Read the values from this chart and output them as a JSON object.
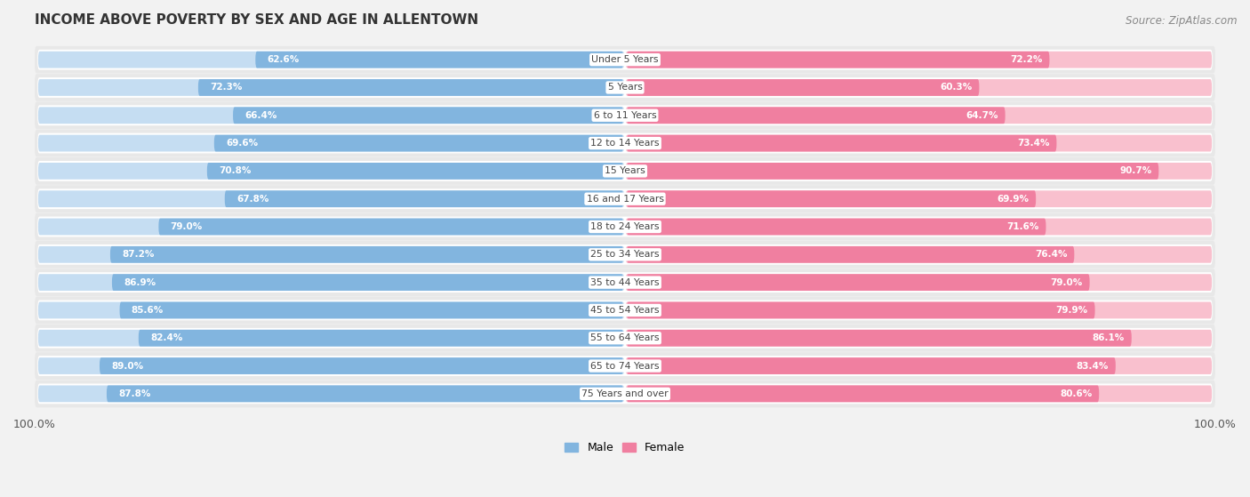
{
  "title": "INCOME ABOVE POVERTY BY SEX AND AGE IN ALLENTOWN",
  "source": "Source: ZipAtlas.com",
  "categories": [
    "Under 5 Years",
    "5 Years",
    "6 to 11 Years",
    "12 to 14 Years",
    "15 Years",
    "16 and 17 Years",
    "18 to 24 Years",
    "25 to 34 Years",
    "35 to 44 Years",
    "45 to 54 Years",
    "55 to 64 Years",
    "65 to 74 Years",
    "75 Years and over"
  ],
  "male_values": [
    62.6,
    72.3,
    66.4,
    69.6,
    70.8,
    67.8,
    79.0,
    87.2,
    86.9,
    85.6,
    82.4,
    89.0,
    87.8
  ],
  "female_values": [
    72.2,
    60.3,
    64.7,
    73.4,
    90.7,
    69.9,
    71.6,
    76.4,
    79.0,
    79.9,
    86.1,
    83.4,
    80.6
  ],
  "male_color": "#82b5df",
  "female_color": "#f07fa0",
  "male_color_light": "#c5ddf2",
  "female_color_light": "#f9c0ce",
  "background_color": "#f2f2f2",
  "row_bg_color": "#e8e8e8",
  "row_inner_color": "#ffffff",
  "max_value": 100.0,
  "legend_male": "Male",
  "legend_female": "Female"
}
